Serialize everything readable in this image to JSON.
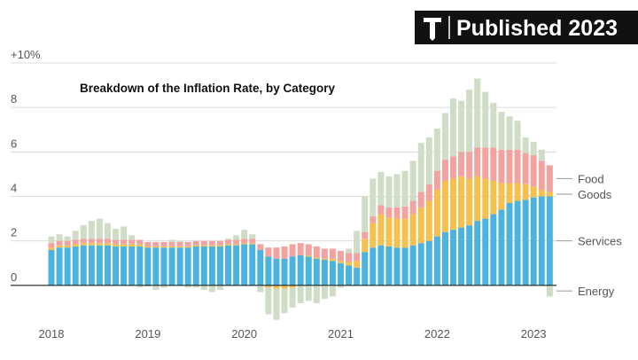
{
  "badge": "Published 2023",
  "chart_data": {
    "type": "stacked-bar",
    "title": "Breakdown of the Inflation Rate, by Category",
    "categories": [
      "2018",
      null,
      null,
      null,
      null,
      null,
      null,
      null,
      null,
      null,
      null,
      null,
      "2019",
      null,
      null,
      null,
      null,
      null,
      null,
      null,
      null,
      null,
      null,
      null,
      "2020",
      null,
      null,
      null,
      null,
      null,
      null,
      null,
      null,
      null,
      null,
      null,
      "2021",
      null,
      null,
      null,
      null,
      null,
      null,
      null,
      null,
      null,
      null,
      null,
      "2022",
      null,
      null,
      null,
      null,
      null,
      null,
      null,
      null,
      null,
      null,
      null,
      "2023",
      null,
      null
    ],
    "series": [
      {
        "name": "Services",
        "color": "#4bb3dd",
        "values": [
          1.6,
          1.7,
          1.7,
          1.75,
          1.8,
          1.8,
          1.8,
          1.8,
          1.75,
          1.75,
          1.75,
          1.75,
          1.7,
          1.7,
          1.7,
          1.7,
          1.7,
          1.7,
          1.75,
          1.75,
          1.75,
          1.75,
          1.8,
          1.8,
          1.85,
          1.85,
          1.6,
          1.3,
          1.2,
          1.2,
          1.3,
          1.35,
          1.3,
          1.2,
          1.15,
          1.1,
          1.0,
          0.9,
          0.8,
          1.5,
          1.7,
          1.8,
          1.75,
          1.7,
          1.7,
          1.8,
          1.9,
          2.0,
          2.2,
          2.4,
          2.5,
          2.6,
          2.7,
          2.9,
          3.0,
          3.2,
          3.4,
          3.7,
          3.8,
          3.85,
          3.95,
          4.0,
          4.0
        ]
      },
      {
        "name": "Goods",
        "color": "#f6c04e",
        "values": [
          0.1,
          0.1,
          0.1,
          0.1,
          0.1,
          0.1,
          0.1,
          0.1,
          0.1,
          0.1,
          0.1,
          0.1,
          0.05,
          0.05,
          0.05,
          0.05,
          0.05,
          0.05,
          0.05,
          0.05,
          0.05,
          0.05,
          0.05,
          0.05,
          0.05,
          0.05,
          0,
          -0.1,
          -0.15,
          -0.15,
          -0.1,
          0,
          0.05,
          0.05,
          0.05,
          0.1,
          0.1,
          0.15,
          0.3,
          0.6,
          1.1,
          1.4,
          1.3,
          1.3,
          1.3,
          1.4,
          1.6,
          1.8,
          2.1,
          2.3,
          2.3,
          2.3,
          2.1,
          2.0,
          1.8,
          1.5,
          1.2,
          0.9,
          0.8,
          0.7,
          0.5,
          0.3,
          0.2
        ]
      },
      {
        "name": "Food",
        "color": "#f2a3a0",
        "values": [
          0.2,
          0.2,
          0.2,
          0.2,
          0.2,
          0.2,
          0.2,
          0.2,
          0.2,
          0.2,
          0.2,
          0.2,
          0.2,
          0.2,
          0.2,
          0.2,
          0.2,
          0.2,
          0.2,
          0.2,
          0.2,
          0.2,
          0.2,
          0.2,
          0.2,
          0.2,
          0.25,
          0.4,
          0.5,
          0.55,
          0.55,
          0.55,
          0.5,
          0.5,
          0.45,
          0.45,
          0.45,
          0.4,
          0.35,
          0.3,
          0.3,
          0.4,
          0.45,
          0.5,
          0.55,
          0.6,
          0.7,
          0.75,
          0.85,
          0.95,
          1.0,
          1.1,
          1.2,
          1.3,
          1.4,
          1.5,
          1.5,
          1.5,
          1.5,
          1.4,
          1.4,
          1.3,
          1.2
        ]
      },
      {
        "name": "Energy",
        "color": "#cfddc6",
        "values": [
          0.3,
          0.3,
          0.2,
          0.4,
          0.6,
          0.8,
          0.9,
          0.7,
          0.5,
          0.6,
          0.2,
          -0.1,
          -0.05,
          -0.2,
          -0.1,
          0.1,
          0.05,
          -0.1,
          -0.1,
          -0.2,
          -0.3,
          -0.2,
          0.05,
          0.2,
          0.4,
          0.2,
          -0.3,
          -1.2,
          -1.4,
          -1.1,
          -0.9,
          -0.8,
          -0.7,
          -0.8,
          -0.6,
          -0.5,
          -0.1,
          0.2,
          1.0,
          1.6,
          1.7,
          1.5,
          1.4,
          1.5,
          1.6,
          1.8,
          2.2,
          2.1,
          1.9,
          2.1,
          2.6,
          2.3,
          2.8,
          3.1,
          2.5,
          2.0,
          1.7,
          1.5,
          1.3,
          0.7,
          0.6,
          0.5,
          -0.5
        ]
      }
    ],
    "ylim": [
      -2,
      10
    ],
    "yticks": [
      0,
      2,
      4,
      6,
      8,
      {
        "value": 10,
        "label": "+10%"
      }
    ],
    "grid": true
  }
}
